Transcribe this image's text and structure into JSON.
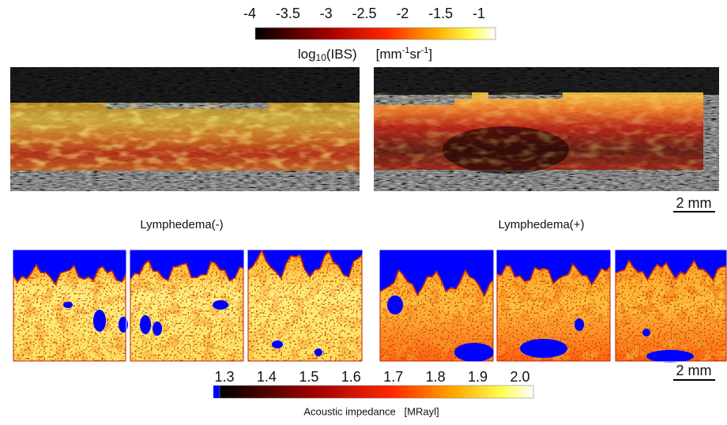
{
  "ibs_colorbar": {
    "ticks": [
      "-4",
      "-3.5",
      "-3",
      "-2.5",
      "-2",
      "-1.5",
      "-1"
    ],
    "label": {
      "prefix": "log",
      "subscript": "10",
      "name": "(IBS)",
      "unit_open": "[mm",
      "exp1": "-1",
      "unit_mid": "sr",
      "exp2": "-1",
      "unit_close": "]"
    }
  },
  "panels": {
    "left_label": "Lymphedema(-)",
    "right_label": "Lymphedema(+)"
  },
  "scale_bars": [
    "2 mm",
    "2 mm"
  ],
  "impedance_colorbar": {
    "ticks": [
      "1.3",
      "1.4",
      "1.5",
      "1.6",
      "1.7",
      "1.8",
      "1.9",
      "2.0"
    ],
    "label": "Acoustic impedance   [MRayl]"
  }
}
